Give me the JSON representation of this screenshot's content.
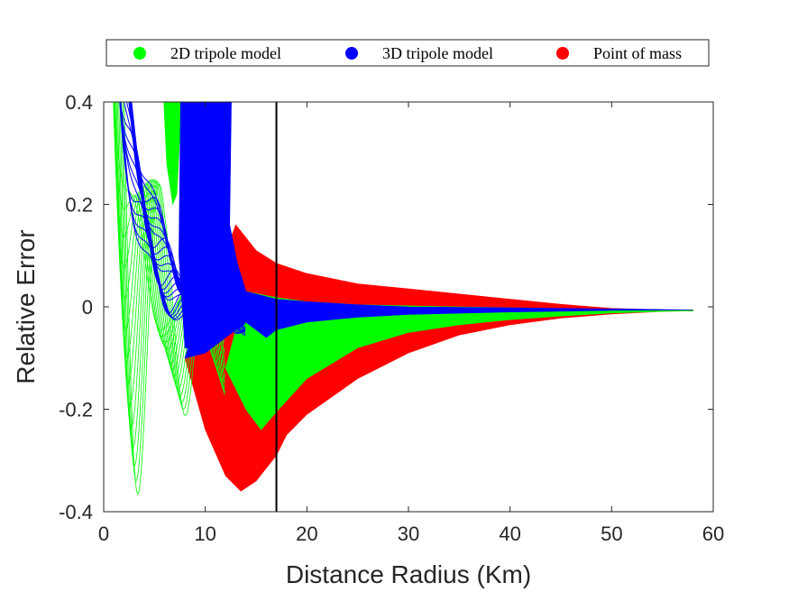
{
  "chart_data": {
    "type": "line",
    "title": "",
    "xlabel": "Distance Radius (Km)",
    "ylabel": "Relative Error",
    "xlim": [
      0,
      60
    ],
    "ylim": [
      -0.4,
      0.4
    ],
    "xticks": [
      0,
      10,
      20,
      30,
      40,
      50,
      60
    ],
    "yticks": [
      -0.4,
      -0.2,
      0,
      0.2,
      0.4
    ],
    "xtick_labels": [
      "0",
      "10",
      "20",
      "30",
      "40",
      "50",
      "60"
    ],
    "ytick_labels": [
      "-0.4",
      "-0.2",
      "0",
      "0.2",
      "0.4"
    ],
    "grid": false,
    "legend_position": "top",
    "reference_line": {
      "x": 17,
      "color": "#000000"
    },
    "series": [
      {
        "name": "Point of mass",
        "color": "#ff0000",
        "upper": [
          [
            13,
            0.16
          ],
          [
            15,
            0.11
          ],
          [
            17,
            0.085
          ],
          [
            20,
            0.065
          ],
          [
            25,
            0.045
          ],
          [
            30,
            0.035
          ],
          [
            35,
            0.025
          ],
          [
            40,
            0.015
          ],
          [
            45,
            0.005
          ],
          [
            50,
            -0.003
          ],
          [
            55,
            -0.006
          ],
          [
            58,
            -0.006
          ]
        ],
        "lower": [
          [
            8,
            -0.1
          ],
          [
            10,
            -0.24
          ],
          [
            12,
            -0.33
          ],
          [
            13.5,
            -0.36
          ],
          [
            15,
            -0.34
          ],
          [
            17,
            -0.29
          ],
          [
            18,
            -0.25
          ],
          [
            20,
            -0.21
          ],
          [
            25,
            -0.14
          ],
          [
            30,
            -0.09
          ],
          [
            35,
            -0.055
          ],
          [
            40,
            -0.035
          ],
          [
            45,
            -0.022
          ],
          [
            50,
            -0.014
          ],
          [
            55,
            -0.009
          ],
          [
            58,
            -0.008
          ]
        ]
      },
      {
        "name": "2D tripole model",
        "color": "#00ff00",
        "upper": [
          [
            14,
            0.03
          ],
          [
            17,
            0.018
          ],
          [
            20,
            0.01
          ],
          [
            25,
            0.004
          ],
          [
            30,
            0.002
          ],
          [
            35,
            0.0
          ],
          [
            40,
            -0.002
          ],
          [
            45,
            -0.004
          ],
          [
            50,
            -0.005
          ],
          [
            55,
            -0.006
          ],
          [
            58,
            -0.006
          ]
        ],
        "lower": [
          [
            12,
            -0.12
          ],
          [
            14,
            -0.2
          ],
          [
            15.5,
            -0.24
          ],
          [
            17,
            -0.205
          ],
          [
            20,
            -0.14
          ],
          [
            25,
            -0.08
          ],
          [
            30,
            -0.05
          ],
          [
            35,
            -0.035
          ],
          [
            40,
            -0.025
          ],
          [
            45,
            -0.018
          ],
          [
            50,
            -0.012
          ],
          [
            55,
            -0.009
          ],
          [
            58,
            -0.008
          ]
        ],
        "near_field_curves": 14
      },
      {
        "name": "3D tripole model",
        "color": "#0000ff",
        "upper": [
          [
            12,
            0.16
          ],
          [
            14,
            0.03
          ],
          [
            17,
            0.015
          ],
          [
            20,
            0.01
          ],
          [
            25,
            0.004
          ],
          [
            30,
            0.0
          ],
          [
            40,
            -0.002
          ],
          [
            50,
            -0.004
          ],
          [
            58,
            -0.006
          ]
        ],
        "lower": [
          [
            8,
            -0.1
          ],
          [
            10,
            -0.09
          ],
          [
            12,
            -0.06
          ],
          [
            14,
            -0.03
          ],
          [
            16,
            -0.06
          ],
          [
            17,
            -0.045
          ],
          [
            20,
            -0.03
          ],
          [
            25,
            -0.02
          ],
          [
            30,
            -0.015
          ],
          [
            40,
            -0.01
          ],
          [
            50,
            -0.007
          ],
          [
            58,
            -0.006
          ]
        ],
        "near_field_curves": 22
      }
    ]
  }
}
